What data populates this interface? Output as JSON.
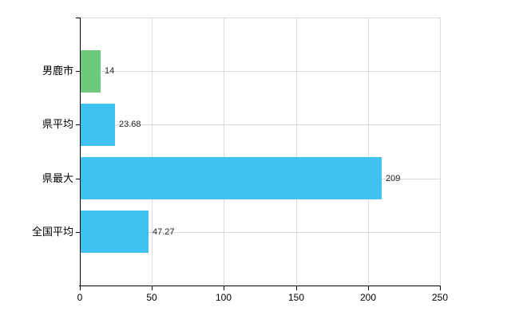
{
  "chart_data": {
    "type": "bar",
    "orientation": "horizontal",
    "title": "",
    "xlabel": "",
    "ylabel": "",
    "categories": [
      "男鹿市",
      "県平均",
      "県最大",
      "全国平均"
    ],
    "values": [
      14,
      23.68,
      209,
      47.27
    ],
    "value_labels": [
      "14",
      "23.68",
      "209",
      "47.27"
    ],
    "bar_colors": [
      "#6dc97c",
      "#40c2f0",
      "#40c2f0",
      "#40c2f0"
    ],
    "xlim": [
      0,
      250
    ],
    "x_ticks": [
      0,
      50,
      100,
      150,
      200,
      250
    ],
    "x_tick_labels": [
      "0",
      "50",
      "100",
      "150",
      "200",
      "250"
    ],
    "grid": true,
    "legend_position": "none",
    "colors": {
      "axis": "#000000",
      "grid": "#dcdcdc",
      "text": "#000000",
      "value_text": "#222222",
      "background": "#ffffff"
    }
  }
}
